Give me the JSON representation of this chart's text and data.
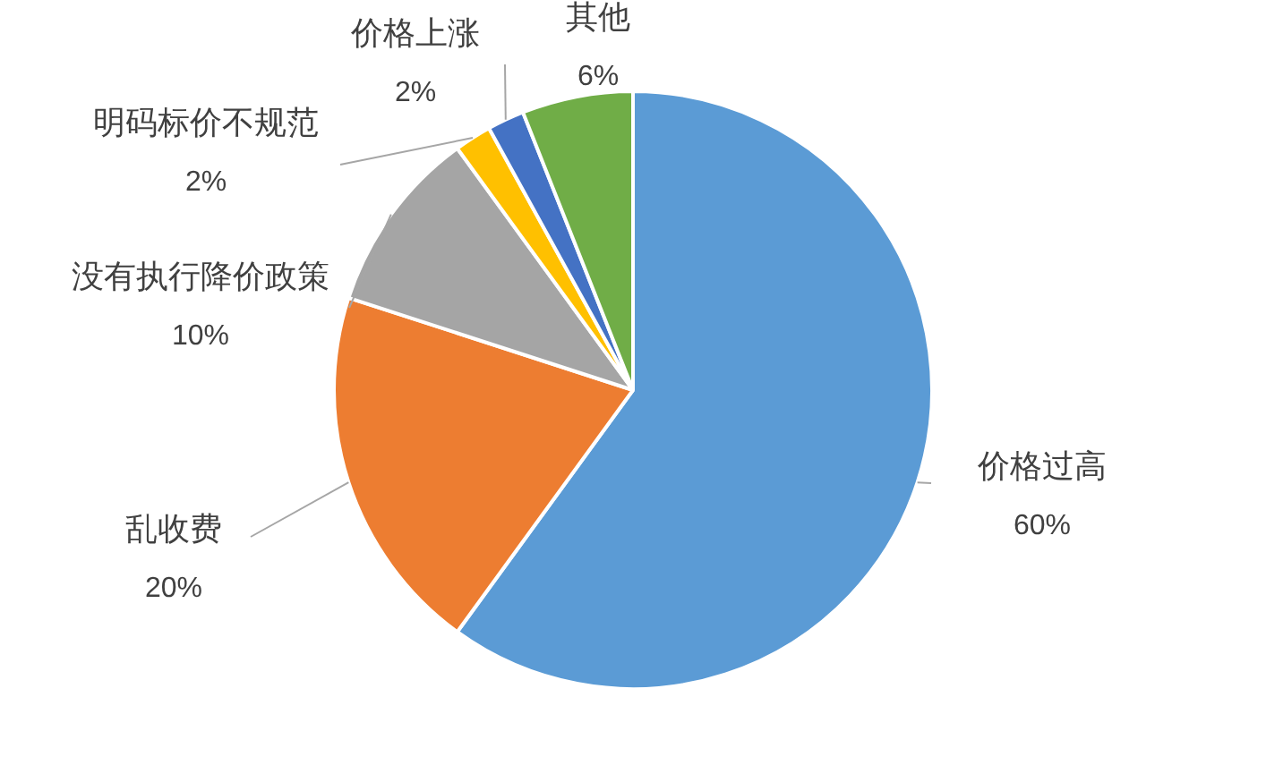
{
  "chart_data": {
    "type": "pie",
    "categories": [
      "价格过高",
      "乱收费",
      "没有执行降价政策",
      "明码标价不规范",
      "价格上涨",
      "其他"
    ],
    "values": [
      60,
      20,
      10,
      2,
      2,
      6
    ],
    "value_labels": [
      "60%",
      "20%",
      "10%",
      "2%",
      "2%",
      "6%"
    ],
    "colors": [
      "#5b9bd5",
      "#ed7d31",
      "#a5a5a5",
      "#ffc000",
      "#4472c4",
      "#70ad47"
    ],
    "legend": false
  }
}
